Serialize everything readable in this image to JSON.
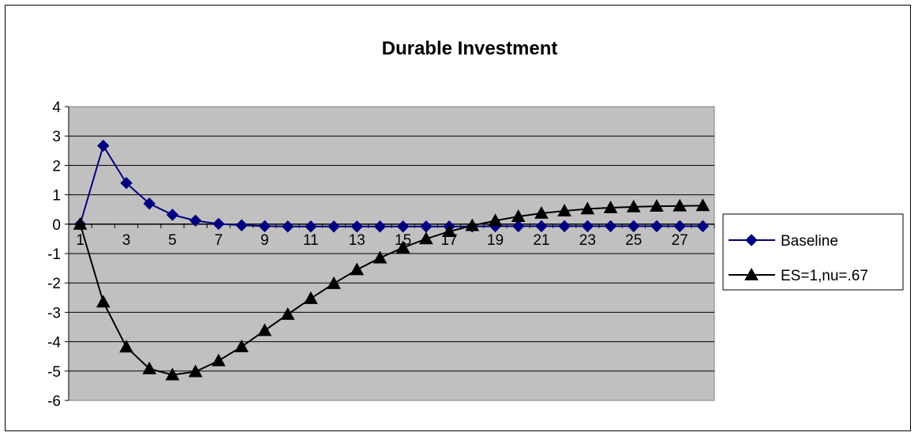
{
  "chart_data": {
    "type": "line",
    "title": "Durable Investment",
    "xlabel": "",
    "ylabel": "",
    "x": [
      1,
      2,
      3,
      4,
      5,
      6,
      7,
      8,
      9,
      10,
      11,
      12,
      13,
      14,
      15,
      16,
      17,
      18,
      19,
      20,
      21,
      22,
      23,
      24,
      25,
      26,
      27,
      28
    ],
    "x_tick_labels": [
      "1",
      "3",
      "5",
      "7",
      "9",
      "11",
      "13",
      "15",
      "17",
      "19",
      "21",
      "23",
      "25",
      "27"
    ],
    "x_tick_values": [
      1,
      3,
      5,
      7,
      9,
      11,
      13,
      15,
      17,
      19,
      21,
      23,
      25,
      27
    ],
    "y_ticks": [
      4,
      3,
      2,
      1,
      0,
      -1,
      -2,
      -3,
      -4,
      -5,
      -6
    ],
    "y_tick_labels": [
      "4",
      "3",
      "2",
      "1",
      "0",
      "-1",
      "-2",
      "-3",
      "-4",
      "-5",
      "-6"
    ],
    "ylim": [
      -6,
      4
    ],
    "grid": "horizontal",
    "plot_background": "#C0C0C0",
    "legend_position": "right",
    "series": [
      {
        "name": "Baseline",
        "color": "#000080",
        "marker": "diamond",
        "values": [
          0,
          2.67,
          1.4,
          0.7,
          0.32,
          0.12,
          0.01,
          -0.04,
          -0.07,
          -0.08,
          -0.08,
          -0.08,
          -0.08,
          -0.08,
          -0.08,
          -0.08,
          -0.08,
          -0.08,
          -0.07,
          -0.07,
          -0.07,
          -0.07,
          -0.07,
          -0.07,
          -0.07,
          -0.07,
          -0.07,
          -0.07
        ]
      },
      {
        "name": "ES=1,nu=.67",
        "color": "#000000",
        "marker": "triangle",
        "values": [
          0,
          -2.65,
          -4.18,
          -4.92,
          -5.13,
          -5.02,
          -4.65,
          -4.17,
          -3.62,
          -3.07,
          -2.53,
          -2.02,
          -1.55,
          -1.15,
          -0.8,
          -0.5,
          -0.25,
          -0.05,
          0.12,
          0.26,
          0.37,
          0.45,
          0.52,
          0.56,
          0.59,
          0.61,
          0.62,
          0.63
        ]
      }
    ]
  }
}
